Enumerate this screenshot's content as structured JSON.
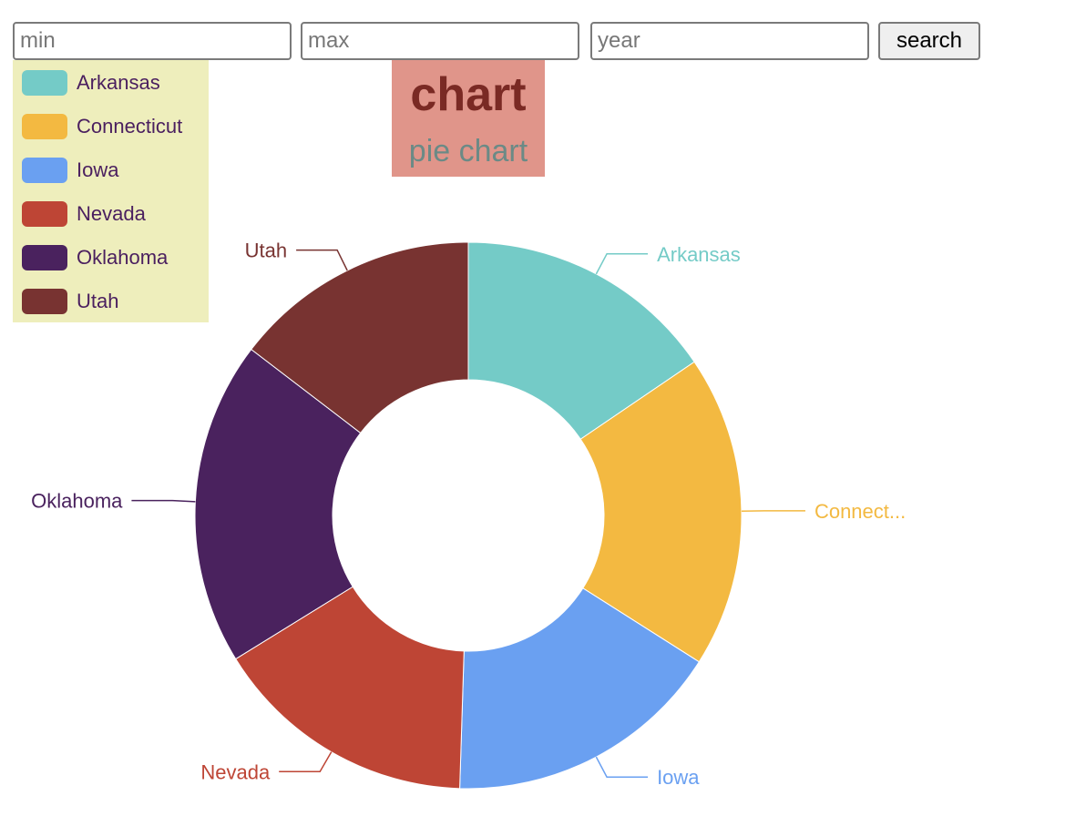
{
  "inputs": {
    "min_placeholder": "min",
    "max_placeholder": "max",
    "year_placeholder": "year",
    "min_value": "",
    "max_value": "",
    "year_value": ""
  },
  "search_label": "search",
  "title": {
    "main": "chart",
    "sub": "pie chart"
  },
  "legend": [
    {
      "label": "Arkansas",
      "color": "#74cbc7"
    },
    {
      "label": "Connecticut",
      "color": "#f3b941"
    },
    {
      "label": "Iowa",
      "color": "#6aa0f1"
    },
    {
      "label": "Nevada",
      "color": "#be4535"
    },
    {
      "label": "Oklahoma",
      "color": "#4a225e"
    },
    {
      "label": "Utah",
      "color": "#783331"
    }
  ],
  "chart_data": {
    "type": "pie",
    "donut": true,
    "legend_position": "top-left",
    "categories": [
      "Arkansas",
      "Connecticut",
      "Iowa",
      "Nevada",
      "Oklahoma",
      "Utah"
    ],
    "labels": [
      "Arkansas",
      "Connect...",
      "Iowa",
      "Nevada",
      "Oklahoma",
      "Utah"
    ],
    "values": [
      15.5,
      18.5,
      16.5,
      15.7,
      19.2,
      14.6
    ],
    "colors": [
      "#74cbc7",
      "#f3b941",
      "#6aa0f1",
      "#be4535",
      "#4a225e",
      "#783331"
    ]
  }
}
